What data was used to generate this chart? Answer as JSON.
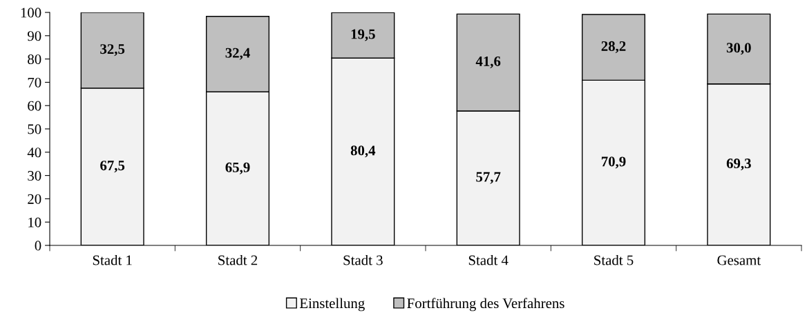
{
  "chart_data": {
    "type": "bar",
    "stacked": true,
    "categories": [
      "Stadt 1",
      "Stadt 2",
      "Stadt 3",
      "Stadt 4",
      "Stadt 5",
      "Gesamt"
    ],
    "series": [
      {
        "name": "Einstellung",
        "color": "#f2f2f2",
        "values": [
          67.5,
          65.9,
          80.4,
          57.7,
          70.9,
          69.3
        ],
        "value_labels": [
          "67,5",
          "65,9",
          "80,4",
          "57,7",
          "70,9",
          "69,3"
        ]
      },
      {
        "name": "Fortführung des Verfahrens",
        "color": "#bfbfbf",
        "values": [
          32.5,
          32.4,
          19.5,
          41.6,
          28.2,
          30.0
        ],
        "value_labels": [
          "32,5",
          "32,4",
          "19,5",
          "41,6",
          "28,2",
          "30,0"
        ]
      }
    ],
    "ylim": [
      0,
      100
    ],
    "yticks": [
      0,
      10,
      20,
      30,
      40,
      50,
      60,
      70,
      80,
      90,
      100
    ],
    "grid": false,
    "legend": "bottom"
  }
}
